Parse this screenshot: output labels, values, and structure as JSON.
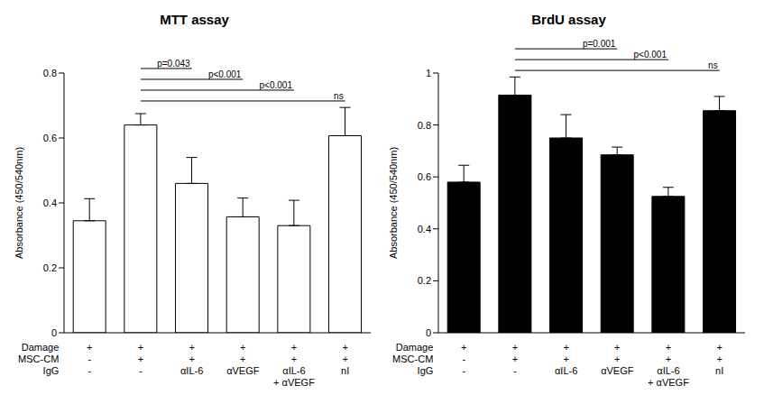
{
  "chart_data": [
    {
      "type": "bar",
      "title": "MTT assay",
      "y_label": "Absorbance (450/540nm)",
      "categories": [
        null,
        null,
        null,
        null,
        null,
        null
      ],
      "x_table": [
        {
          "label": "Damage",
          "cells": [
            "+",
            "+",
            "+",
            "+",
            "+",
            "+"
          ]
        },
        {
          "label": "MSC-CM",
          "cells": [
            "-",
            "+",
            "+",
            "+",
            "+",
            "+"
          ]
        },
        {
          "label": "IgG",
          "cells": [
            "-",
            "-",
            "αIL-6",
            "αVEGF",
            [
              "αIL-6",
              "+ αVEGF"
            ],
            "nI"
          ]
        }
      ],
      "values": [
        0.345,
        0.64,
        0.46,
        0.357,
        0.33,
        0.607
      ],
      "errors": [
        0.068,
        0.035,
        0.08,
        0.058,
        0.078,
        0.087
      ],
      "color": "#ffffff",
      "ylim": [
        0,
        0.8
      ],
      "yticks": [
        0,
        0.2,
        0.4,
        0.6,
        0.8
      ],
      "comparisons": [
        {
          "from": 1,
          "to": 2,
          "label": "p=0.043"
        },
        {
          "from": 1,
          "to": 3,
          "label": "p<0.001"
        },
        {
          "from": 1,
          "to": 4,
          "label": "p<0.001"
        },
        {
          "from": 1,
          "to": 5,
          "label": "ns"
        }
      ]
    },
    {
      "type": "bar",
      "title": "BrdU assay",
      "y_label": "Absorbance (450/540nm)",
      "categories": [
        null,
        null,
        null,
        null,
        null,
        null
      ],
      "x_table": [
        {
          "label": "Damage",
          "cells": [
            "+",
            "+",
            "+",
            "+",
            "+",
            "+"
          ]
        },
        {
          "label": "MSC-CM",
          "cells": [
            "-",
            "+",
            "+",
            "+",
            "+",
            "+"
          ]
        },
        {
          "label": "IgG",
          "cells": [
            "-",
            "-",
            "αIL-6",
            "αVEGF",
            [
              "αIL-6",
              "+ αVEGF"
            ],
            "nI"
          ]
        }
      ],
      "values": [
        0.58,
        0.915,
        0.75,
        0.685,
        0.525,
        0.855
      ],
      "errors": [
        0.065,
        0.07,
        0.09,
        0.03,
        0.035,
        0.055
      ],
      "color": "#000000",
      "ylim": [
        0,
        1
      ],
      "yticks": [
        0,
        0.2,
        0.4,
        0.6,
        0.8,
        1
      ],
      "comparisons": [
        {
          "from": 1,
          "to": 3,
          "label": "p=0.001"
        },
        {
          "from": 1,
          "to": 4,
          "label": "p<0.001"
        },
        {
          "from": 1,
          "to": 5,
          "label": "ns"
        }
      ]
    }
  ]
}
